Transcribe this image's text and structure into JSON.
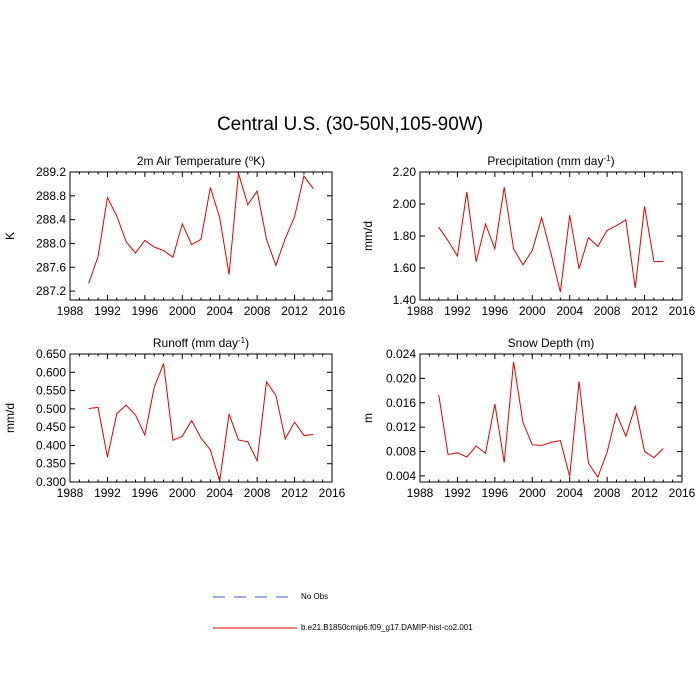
{
  "figure": {
    "title": "Central U.S. (30-50N,105-90W)"
  },
  "legend": {
    "items": [
      {
        "label": "No Obs",
        "color": "#3b5bd6",
        "style": "dashed"
      },
      {
        "label": "b.e21.B1850cmip6.f09_g17.DAMIP-hist-co2.001",
        "color": "#e00000",
        "style": "solid"
      }
    ]
  },
  "chart_data": [
    {
      "type": "line",
      "title": "2m Air Temperature (°K)",
      "title_main": "2m Air Temperature (",
      "title_sup": "o",
      "title_end": "K)",
      "ylabel": "K",
      "xlim": [
        1988,
        2016
      ],
      "xticks": [
        1988,
        1992,
        1996,
        2000,
        2004,
        2008,
        2012,
        2016
      ],
      "ylim": [
        287.05,
        289.2
      ],
      "yticks": [
        "287.2",
        "287.6",
        "288.0",
        "288.4",
        "288.8",
        "289.2"
      ],
      "x": [
        1990,
        1991,
        1992,
        1993,
        1994,
        1995,
        1996,
        1997,
        1998,
        1999,
        2000,
        2001,
        2002,
        2003,
        2004,
        2005,
        2006,
        2007,
        2008,
        2009,
        2010,
        2011,
        2012,
        2013,
        2014
      ],
      "series": [
        {
          "name": "b.e21.B1850cmip6.f09_g17.DAMIP-hist-co2.001",
          "color": "#e00000",
          "values": [
            287.33,
            287.78,
            288.77,
            288.46,
            288.03,
            287.84,
            288.05,
            287.94,
            287.88,
            287.77,
            288.33,
            287.98,
            288.07,
            288.94,
            288.43,
            287.48,
            289.18,
            288.65,
            288.88,
            288.07,
            287.63,
            288.08,
            288.45,
            289.13,
            288.92
          ]
        }
      ]
    },
    {
      "type": "line",
      "title": "Precipitation (mm day-1)",
      "title_main": "Precipitation (mm day",
      "title_sup": "-1",
      "title_end": ")",
      "ylabel": "mm/d",
      "xlim": [
        1988,
        2016
      ],
      "xticks": [
        1988,
        1992,
        1996,
        2000,
        2004,
        2008,
        2012,
        2016
      ],
      "ylim": [
        1.4,
        2.2
      ],
      "yticks": [
        "1.40",
        "1.60",
        "1.80",
        "2.00",
        "2.20"
      ],
      "x": [
        1990,
        1991,
        1992,
        1993,
        1994,
        1995,
        1996,
        1997,
        1998,
        1999,
        2000,
        2001,
        2002,
        2003,
        2004,
        2005,
        2006,
        2007,
        2008,
        2009,
        2010,
        2011,
        2012,
        2013,
        2014
      ],
      "series": [
        {
          "name": "b.e21.B1850cmip6.f09_g17.DAMIP-hist-co2.001",
          "color": "#e00000",
          "values": [
            1.855,
            1.77,
            1.675,
            2.075,
            1.64,
            1.875,
            1.72,
            2.105,
            1.72,
            1.62,
            1.71,
            1.915,
            1.69,
            1.45,
            1.93,
            1.595,
            1.79,
            1.735,
            1.835,
            1.865,
            1.9,
            1.475,
            1.985,
            1.64,
            1.64
          ]
        }
      ]
    },
    {
      "type": "line",
      "title": "Runoff (mm day-1)",
      "title_main": "Runoff (mm day",
      "title_sup": "-1",
      "title_end": ")",
      "ylabel": "mm/d",
      "xlim": [
        1988,
        2016
      ],
      "xticks": [
        1988,
        1992,
        1996,
        2000,
        2004,
        2008,
        2012,
        2016
      ],
      "ylim": [
        0.3,
        0.65
      ],
      "yticks": [
        "0.300",
        "0.350",
        "0.400",
        "0.450",
        "0.500",
        "0.550",
        "0.600",
        "0.650"
      ],
      "x": [
        1990,
        1991,
        1992,
        1993,
        1994,
        1995,
        1996,
        1997,
        1998,
        1999,
        2000,
        2001,
        2002,
        2003,
        2004,
        2005,
        2006,
        2007,
        2008,
        2009,
        2010,
        2011,
        2012,
        2013,
        2014
      ],
      "series": [
        {
          "name": "b.e21.B1850cmip6.f09_g17.DAMIP-hist-co2.001",
          "color": "#e00000",
          "values": [
            0.501,
            0.504,
            0.368,
            0.487,
            0.51,
            0.483,
            0.428,
            0.559,
            0.624,
            0.414,
            0.425,
            0.468,
            0.42,
            0.388,
            0.303,
            0.486,
            0.415,
            0.41,
            0.358,
            0.574,
            0.537,
            0.418,
            0.464,
            0.427,
            0.43
          ]
        }
      ]
    },
    {
      "type": "line",
      "title": "Snow Depth (m)",
      "title_main": "Snow Depth (m)",
      "title_sup": "",
      "title_end": "",
      "ylabel": "m",
      "xlim": [
        1988,
        2016
      ],
      "xticks": [
        1988,
        1992,
        1996,
        2000,
        2004,
        2008,
        2012,
        2016
      ],
      "ylim": [
        0.003,
        0.024
      ],
      "yticks": [
        "0.004",
        "0.008",
        "0.012",
        "0.016",
        "0.020",
        "0.024"
      ],
      "x": [
        1990,
        1991,
        1992,
        1993,
        1994,
        1995,
        1996,
        1997,
        1998,
        1999,
        2000,
        2001,
        2002,
        2003,
        2004,
        2005,
        2006,
        2007,
        2008,
        2009,
        2010,
        2011,
        2012,
        2013,
        2014
      ],
      "series": [
        {
          "name": "b.e21.B1850cmip6.f09_g17.DAMIP-hist-co2.001",
          "color": "#e00000",
          "values": [
            0.0173,
            0.0075,
            0.0078,
            0.0071,
            0.0089,
            0.0077,
            0.0158,
            0.0062,
            0.0227,
            0.0128,
            0.0091,
            0.009,
            0.0095,
            0.0098,
            0.0039,
            0.0195,
            0.0061,
            0.0038,
            0.0079,
            0.0142,
            0.0105,
            0.0154,
            0.008,
            0.007,
            0.0085
          ]
        }
      ]
    }
  ]
}
